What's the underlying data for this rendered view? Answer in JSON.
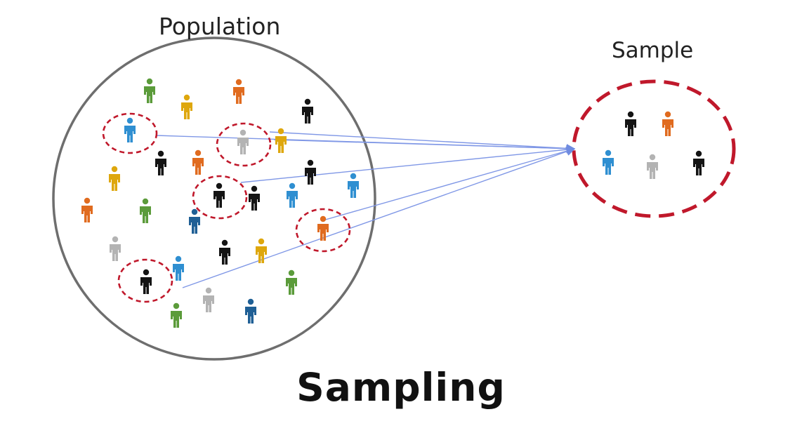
{
  "labels": {
    "population": "Population",
    "sample": "Sample",
    "title": "Sampling"
  },
  "colors": {
    "population_outline": "#6e6e6e",
    "sample_outline": "#c0182b",
    "arrow": "#7f97e6",
    "green": "#5b9b3a",
    "orange": "#e06b1f",
    "gold": "#dea70d",
    "black": "#141414",
    "blue": "#2f8fd1",
    "gray": "#b3b3b3",
    "navy": "#1f5f95"
  },
  "population_figures": [
    {
      "color": "green"
    },
    {
      "color": "gold"
    },
    {
      "color": "orange"
    },
    {
      "color": "black"
    },
    {
      "color": "blue",
      "sampled": true
    },
    {
      "color": "gray",
      "sampled": true
    },
    {
      "color": "gold"
    },
    {
      "color": "black"
    },
    {
      "color": "orange"
    },
    {
      "color": "gold"
    },
    {
      "color": "black"
    },
    {
      "color": "black",
      "sampled": true
    },
    {
      "color": "black"
    },
    {
      "color": "blue"
    },
    {
      "color": "blue"
    },
    {
      "color": "orange"
    },
    {
      "color": "green"
    },
    {
      "color": "navy"
    },
    {
      "color": "orange",
      "sampled": true
    },
    {
      "color": "gray"
    },
    {
      "color": "black"
    },
    {
      "color": "gold"
    },
    {
      "color": "black",
      "sampled": true
    },
    {
      "color": "blue"
    },
    {
      "color": "green"
    },
    {
      "color": "gray"
    },
    {
      "color": "green"
    },
    {
      "color": "navy"
    }
  ],
  "sample_figures": [
    {
      "color": "black"
    },
    {
      "color": "orange"
    },
    {
      "color": "blue"
    },
    {
      "color": "gray"
    },
    {
      "color": "black"
    }
  ]
}
